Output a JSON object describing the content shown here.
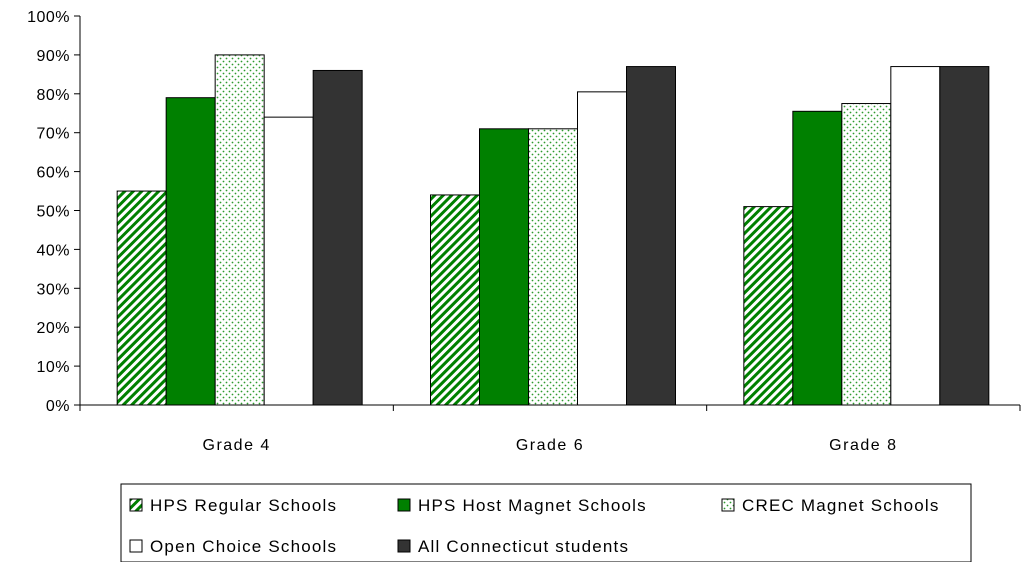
{
  "chart_data": {
    "type": "bar",
    "categories": [
      "Grade 4",
      "Grade 6",
      "Grade 8"
    ],
    "series": [
      {
        "name": "HPS Regular Schools",
        "values": [
          55,
          54,
          51
        ],
        "fill": "hatch-green"
      },
      {
        "name": "HPS Host Magnet Schools",
        "values": [
          79,
          71,
          75.5
        ],
        "fill": "#008000"
      },
      {
        "name": "CREC Magnet Schools",
        "values": [
          90,
          71,
          77.5
        ],
        "fill": "dotted-green"
      },
      {
        "name": "Open Choice Schools",
        "values": [
          74,
          80.5,
          87
        ],
        "fill": "#ffffff"
      },
      {
        "name": "All Connecticut students",
        "values": [
          86,
          87,
          87
        ],
        "fill": "#333333"
      }
    ],
    "yticks": [
      "0%",
      "10%",
      "20%",
      "30%",
      "40%",
      "50%",
      "60%",
      "70%",
      "80%",
      "90%",
      "100%"
    ],
    "ylim": [
      0,
      100
    ],
    "grid": false,
    "legend_position": "bottom",
    "title": "",
    "xlabel": "",
    "ylabel": ""
  },
  "colors": {
    "green": "#008000",
    "dark": "#333333",
    "white": "#ffffff",
    "axis": "#000000"
  }
}
